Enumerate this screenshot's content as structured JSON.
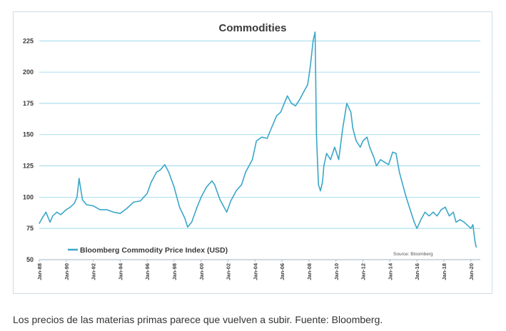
{
  "chart_data": {
    "type": "line",
    "title": "Commodities",
    "xlabel": "",
    "ylabel": "",
    "ylim": [
      50,
      240
    ],
    "xlim": [
      1988.0,
      2020.7
    ],
    "yticks": [
      50,
      75,
      100,
      125,
      150,
      175,
      200,
      225
    ],
    "xticks": [
      "Jan-88",
      "Jan-90",
      "Jan-92",
      "Jan-94",
      "Jan-96",
      "Jan-98",
      "Jan-00",
      "Jan-02",
      "Jan-04",
      "Jan-06",
      "Jan-08",
      "Jan-10",
      "Jan-12",
      "Jan-14",
      "Jan-16",
      "Jan-18",
      "Jan-20"
    ],
    "grid": true,
    "legend": "bottom-left",
    "source": "Source: Bloomberg",
    "accent": "#3aa6c8",
    "series": [
      {
        "name": "Bloomberg Commodity Price Index (USD)",
        "x": [
          1988.0,
          1988.2,
          1988.5,
          1988.8,
          1989.0,
          1989.3,
          1989.6,
          1990.0,
          1990.3,
          1990.6,
          1990.8,
          1990.95,
          1991.2,
          1991.5,
          1992.0,
          1992.5,
          1993.0,
          1993.5,
          1994.0,
          1994.5,
          1995.0,
          1995.5,
          1996.0,
          1996.3,
          1996.7,
          1997.0,
          1997.3,
          1997.6,
          1998.0,
          1998.4,
          1998.8,
          1999.0,
          1999.3,
          1999.7,
          2000.0,
          2000.4,
          2000.8,
          2001.0,
          2001.4,
          2001.9,
          2002.2,
          2002.6,
          2003.0,
          2003.3,
          2003.8,
          2004.1,
          2004.5,
          2004.9,
          2005.2,
          2005.6,
          2005.9,
          2006.2,
          2006.4,
          2006.7,
          2007.0,
          2007.3,
          2007.6,
          2007.9,
          2008.1,
          2008.3,
          2008.45,
          2008.55,
          2008.7,
          2008.85,
          2009.0,
          2009.1,
          2009.3,
          2009.6,
          2009.9,
          2010.2,
          2010.5,
          2010.8,
          2011.1,
          2011.25,
          2011.5,
          2011.8,
          2012.0,
          2012.3,
          2012.5,
          2012.8,
          2013.0,
          2013.3,
          2013.6,
          2013.9,
          2014.2,
          2014.45,
          2014.7,
          2014.95,
          2015.2,
          2015.5,
          2015.8,
          2016.0,
          2016.3,
          2016.6,
          2016.9,
          2017.2,
          2017.5,
          2017.8,
          2018.1,
          2018.4,
          2018.7,
          2018.9,
          2019.2,
          2019.5,
          2019.8,
          2020.0,
          2020.15,
          2020.3,
          2020.4
        ],
        "values": [
          79,
          83,
          88,
          80,
          85,
          88,
          86,
          90,
          92,
          95,
          100,
          115,
          98,
          94,
          93,
          90,
          90,
          88,
          87,
          91,
          96,
          97,
          103,
          112,
          120,
          122,
          126,
          120,
          108,
          92,
          83,
          76,
          80,
          92,
          100,
          108,
          113,
          110,
          98,
          88,
          97,
          105,
          110,
          120,
          130,
          145,
          148,
          147,
          155,
          165,
          168,
          176,
          181,
          175,
          173,
          178,
          184,
          190,
          205,
          225,
          232,
          150,
          110,
          105,
          112,
          125,
          135,
          130,
          140,
          130,
          155,
          175,
          168,
          155,
          145,
          140,
          145,
          148,
          140,
          132,
          125,
          130,
          128,
          126,
          136,
          135,
          120,
          110,
          100,
          90,
          80,
          75,
          82,
          88,
          85,
          88,
          85,
          90,
          92,
          85,
          88,
          80,
          82,
          80,
          77,
          75,
          78,
          65,
          60
        ]
      }
    ]
  },
  "caption": "Los precios de las materias primas parece que vuelven a subir. Fuente: Bloomberg."
}
